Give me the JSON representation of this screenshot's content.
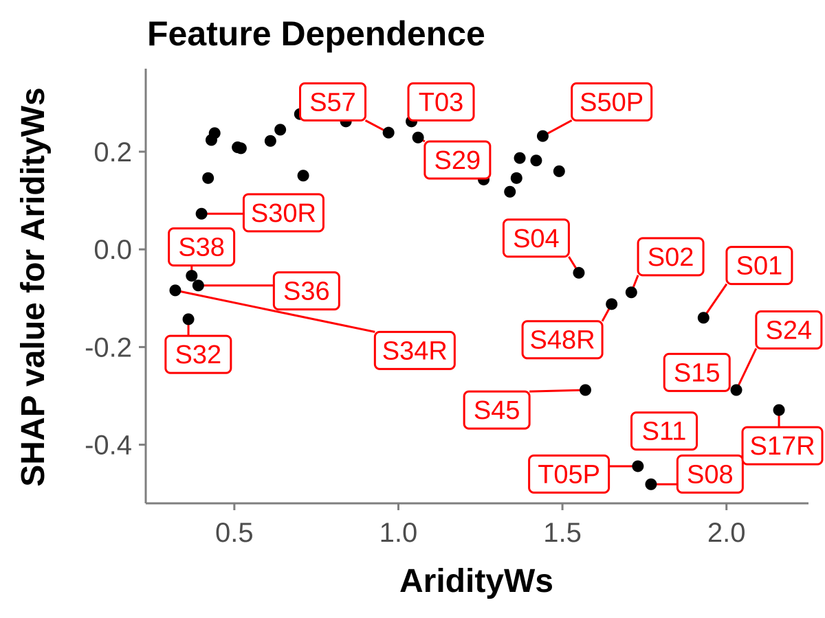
{
  "chart_data": {
    "type": "scatter",
    "title": "Feature Dependence",
    "xlabel": "AridityWs",
    "ylabel": "SHAP value for AridityWs",
    "xlim": [
      0.23,
      2.25
    ],
    "ylim": [
      -0.52,
      0.37
    ],
    "xticks": [
      0.5,
      1.0,
      1.5,
      2.0
    ],
    "xtick_labels": [
      "0.5",
      "1.0",
      "1.5",
      "2.0"
    ],
    "yticks": [
      0.2,
      0.0,
      -0.2,
      -0.4
    ],
    "ytick_labels": [
      "0.2",
      "0.0",
      "-0.2",
      "-0.4"
    ],
    "grid": false,
    "point_color": "#000000",
    "label_color": "#ff0000",
    "points": [
      {
        "x": 0.32,
        "y": -0.084,
        "label": "S34R"
      },
      {
        "x": 0.36,
        "y": -0.143,
        "label": "S32"
      },
      {
        "x": 0.37,
        "y": -0.054,
        "label": "S38"
      },
      {
        "x": 0.39,
        "y": -0.074,
        "label": "S36"
      },
      {
        "x": 0.4,
        "y": 0.073,
        "label": "S30R"
      },
      {
        "x": 0.42,
        "y": 0.146,
        "label": null
      },
      {
        "x": 0.43,
        "y": 0.224,
        "label": null
      },
      {
        "x": 0.44,
        "y": 0.238,
        "label": null
      },
      {
        "x": 0.51,
        "y": 0.209,
        "label": null
      },
      {
        "x": 0.52,
        "y": 0.207,
        "label": null
      },
      {
        "x": 0.61,
        "y": 0.222,
        "label": null
      },
      {
        "x": 0.64,
        "y": 0.245,
        "label": null
      },
      {
        "x": 0.7,
        "y": 0.277,
        "label": null
      },
      {
        "x": 0.71,
        "y": 0.151,
        "label": null
      },
      {
        "x": 0.84,
        "y": 0.262,
        "label": null
      },
      {
        "x": 0.97,
        "y": 0.239,
        "label": "S57"
      },
      {
        "x": 1.04,
        "y": 0.262,
        "label": "T03"
      },
      {
        "x": 1.06,
        "y": 0.229,
        "label": "S29"
      },
      {
        "x": 1.26,
        "y": 0.143,
        "label": null
      },
      {
        "x": 1.34,
        "y": 0.118,
        "label": null
      },
      {
        "x": 1.36,
        "y": 0.146,
        "label": null
      },
      {
        "x": 1.37,
        "y": 0.187,
        "label": null
      },
      {
        "x": 1.42,
        "y": 0.182,
        "label": null
      },
      {
        "x": 1.44,
        "y": 0.232,
        "label": "S50P"
      },
      {
        "x": 1.49,
        "y": 0.16,
        "label": null
      },
      {
        "x": 1.55,
        "y": -0.048,
        "label": "S04"
      },
      {
        "x": 1.57,
        "y": -0.288,
        "label": "S45"
      },
      {
        "x": 1.65,
        "y": -0.112,
        "label": "S48R"
      },
      {
        "x": 1.71,
        "y": -0.088,
        "label": "S02"
      },
      {
        "x": 1.73,
        "y": -0.444,
        "label": "T05P"
      },
      {
        "x": 1.77,
        "y": -0.481,
        "label": "S08"
      },
      {
        "x": 1.93,
        "y": -0.14,
        "label": "S01"
      },
      {
        "x": 1.98,
        "y": -0.246,
        "label": "S15"
      },
      {
        "x": 2.03,
        "y": -0.288,
        "label": "S24"
      },
      {
        "x": 2.16,
        "y": -0.329,
        "label": "S17R"
      }
    ],
    "free_labels": [
      {
        "text": "S11",
        "x": 1.81,
        "y": -0.372
      }
    ],
    "label_offsets": [
      {
        "label": "S57",
        "x": 0.8,
        "y": 0.302
      },
      {
        "label": "T03",
        "x": 1.13,
        "y": 0.302
      },
      {
        "label": "S50P",
        "x": 1.65,
        "y": 0.302
      },
      {
        "label": "S29",
        "x": 1.18,
        "y": 0.183
      },
      {
        "label": "S30R",
        "x": 0.65,
        "y": 0.075
      },
      {
        "label": "S38",
        "x": 0.4,
        "y": 0.005
      },
      {
        "label": "S04",
        "x": 1.42,
        "y": 0.023
      },
      {
        "label": "S02",
        "x": 1.83,
        "y": -0.015
      },
      {
        "label": "S01",
        "x": 2.1,
        "y": -0.033
      },
      {
        "label": "S36",
        "x": 0.72,
        "y": -0.085
      },
      {
        "label": "S48R",
        "x": 1.5,
        "y": -0.185
      },
      {
        "label": "S24",
        "x": 2.19,
        "y": -0.165
      },
      {
        "label": "S32",
        "x": 0.39,
        "y": -0.215
      },
      {
        "label": "S34R",
        "x": 1.05,
        "y": -0.207
      },
      {
        "label": "S15",
        "x": 1.91,
        "y": -0.252
      },
      {
        "label": "S45",
        "x": 1.3,
        "y": -0.329
      },
      {
        "label": "S17R",
        "x": 2.18,
        "y": -0.402
      },
      {
        "label": "T05P",
        "x": 1.52,
        "y": -0.46
      },
      {
        "label": "S08",
        "x": 1.95,
        "y": -0.46
      }
    ]
  }
}
